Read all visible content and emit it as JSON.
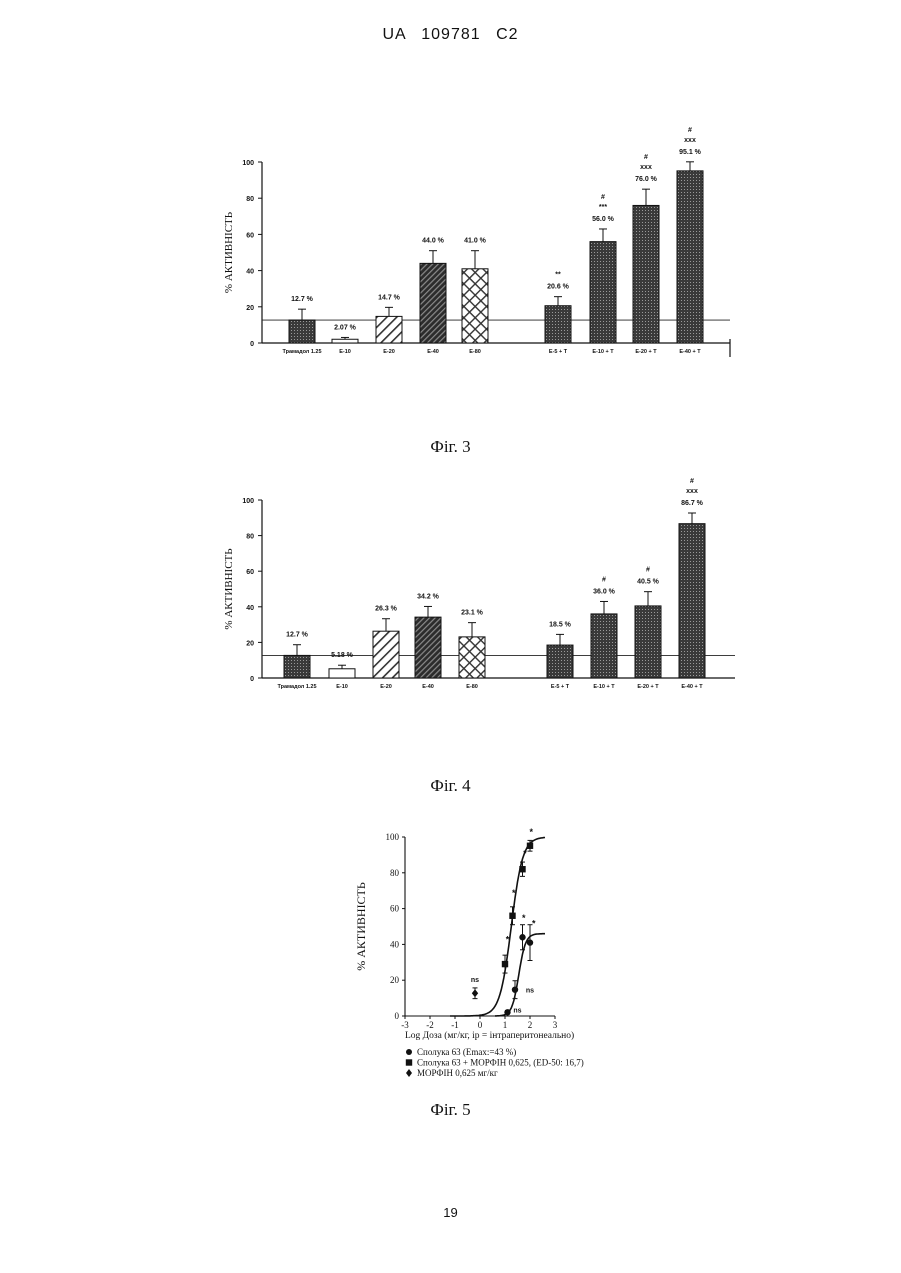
{
  "header": "UA 109781 C2",
  "page_number": "19",
  "figures": [
    {
      "caption": "Фіг. 3"
    },
    {
      "caption": "Фіг. 4"
    },
    {
      "caption": "Фіг. 5"
    }
  ],
  "chart_data": [
    {
      "type": "bar",
      "ylabel": "% АКТИВНІСТЬ",
      "ylim": [
        0,
        100
      ],
      "yticks": [
        "0",
        "20",
        "40",
        "60",
        "80",
        "100"
      ],
      "reference_line": 12.7,
      "categories": [
        "Трамадол 1.25",
        "E-10",
        "E-20",
        "E-40",
        "E-80",
        "E-5 + T",
        "E-10 + T",
        "E-20 + T",
        "E-40 + T"
      ],
      "values": [
        12.7,
        2.07,
        14.7,
        44.0,
        41.0,
        20.6,
        56.0,
        76.0,
        95.1
      ],
      "errors": [
        6,
        1,
        5,
        7,
        10,
        5,
        7,
        9,
        5
      ],
      "value_labels": [
        "12.7 %",
        "2.07 %",
        "14.7 %",
        "44.0 %",
        "41.0 %",
        "20.6 %",
        "56.0 %",
        "76.0 %",
        "95.1 %"
      ],
      "annotations": [
        "",
        "",
        "",
        "",
        "",
        "**",
        "#\n***",
        "#\nxxx",
        "#\nxxx"
      ]
    },
    {
      "type": "bar",
      "ylabel": "% АКТИВНІСТЬ",
      "ylim": [
        0,
        100
      ],
      "yticks": [
        "0",
        "20",
        "40",
        "60",
        "80",
        "100"
      ],
      "reference_line": 12.7,
      "categories": [
        "Трамадол 1.25",
        "E-10",
        "E-20",
        "E-40",
        "E-80",
        "E-5 + T",
        "E-10 + T",
        "E-20 + T",
        "E-40 + T"
      ],
      "values": [
        12.7,
        5.18,
        26.3,
        34.2,
        23.1,
        18.5,
        36.0,
        40.5,
        86.7
      ],
      "errors": [
        6,
        2,
        7,
        6,
        8,
        6,
        7,
        8,
        6
      ],
      "value_labels": [
        "12.7 %",
        "5.18 %",
        "26.3 %",
        "34.2 %",
        "23.1 %",
        "18.5 %",
        "36.0 %",
        "40.5 %",
        "86.7 %"
      ],
      "annotations": [
        "",
        "",
        "",
        "",
        "",
        "",
        "#",
        "#",
        "#\nxxx"
      ]
    },
    {
      "type": "scatter",
      "ylabel": "% АКТИВНІСТЬ",
      "xlabel": "Log Доза (мг/кг, ip = інтраперитонеально)",
      "xlim": [
        -3,
        3
      ],
      "ylim": [
        0,
        100
      ],
      "xticks": [
        "-3",
        "-2",
        "-1",
        "0",
        "1",
        "2",
        "3"
      ],
      "yticks": [
        "0",
        "20",
        "40",
        "60",
        "80",
        "100"
      ],
      "series": [
        {
          "name": "Сполука 63 (Emax:=43 %)",
          "marker": "circle",
          "x": [
            1.1,
            1.4,
            1.7,
            2.0
          ],
          "y": [
            2.07,
            14.7,
            44.0,
            41.0
          ],
          "err": [
            1,
            5,
            7,
            10
          ]
        },
        {
          "name": "Сполука 63 + МОРФІН 0,625, (ED-50: 16,7)",
          "marker": "square",
          "x": [
            1.0,
            1.3,
            1.7,
            2.0
          ],
          "y": [
            29.0,
            56.0,
            82.0,
            95.1
          ],
          "err": [
            5,
            5,
            4,
            3
          ]
        },
        {
          "name": "МОРФІН 0,625 мг/кг",
          "marker": "diamond",
          "x": [
            -0.2
          ],
          "y": [
            12.7
          ],
          "err": [
            3
          ]
        }
      ],
      "annotations": [
        {
          "text": "ns",
          "x": -0.2,
          "y": 19
        },
        {
          "text": "ns",
          "x": 2.0,
          "y": 13
        },
        {
          "text": "ns",
          "x": 1.5,
          "y": 2
        },
        {
          "text": "*",
          "x": 1.1,
          "y": 41
        },
        {
          "text": "*",
          "x": 1.35,
          "y": 67
        },
        {
          "text": "*",
          "x": 1.8,
          "y": 89
        },
        {
          "text": "*",
          "x": 2.05,
          "y": 101
        },
        {
          "text": "*",
          "x": 1.75,
          "y": 53
        },
        {
          "text": "*",
          "x": 2.15,
          "y": 50
        }
      ]
    }
  ]
}
